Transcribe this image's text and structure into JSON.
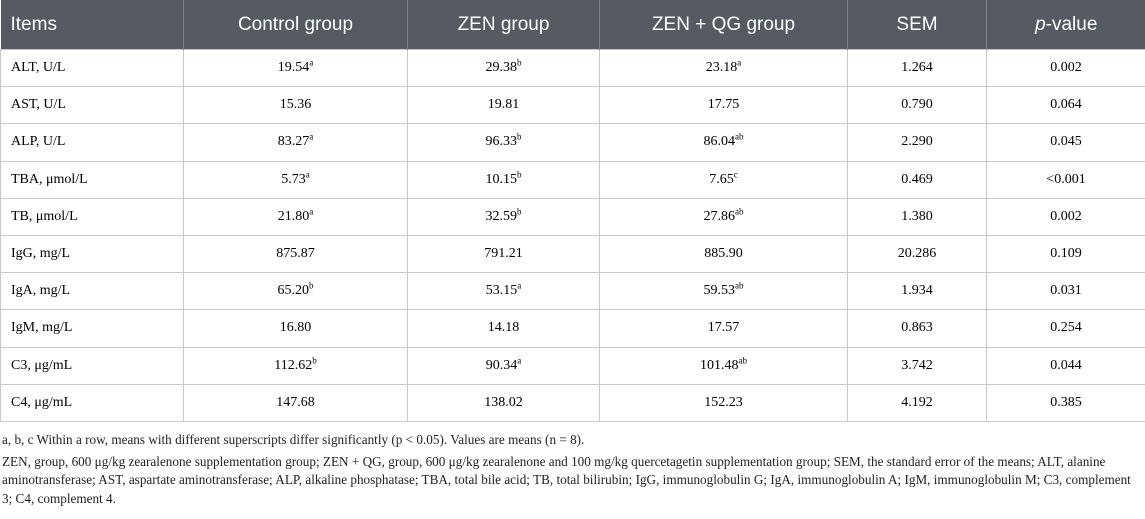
{
  "table": {
    "headers": [
      "Items",
      "Control group",
      "ZEN group",
      "ZEN + QG group",
      "SEM",
      "p-value"
    ],
    "rows": [
      {
        "item": "ALT, U/L",
        "control": "19.54",
        "control_sup": "a",
        "zen": "29.38",
        "zen_sup": "b",
        "zenqg": "23.18",
        "zenqg_sup": "a",
        "sem": "1.264",
        "p": "0.002"
      },
      {
        "item": "AST, U/L",
        "control": "15.36",
        "control_sup": "",
        "zen": "19.81",
        "zen_sup": "",
        "zenqg": "17.75",
        "zenqg_sup": "",
        "sem": "0.790",
        "p": "0.064"
      },
      {
        "item": "ALP, U/L",
        "control": "83.27",
        "control_sup": "a",
        "zen": "96.33",
        "zen_sup": "b",
        "zenqg": "86.04",
        "zenqg_sup": "ab",
        "sem": "2.290",
        "p": "0.045"
      },
      {
        "item": "TBA, μmol/L",
        "control": "5.73",
        "control_sup": "a",
        "zen": "10.15",
        "zen_sup": "b",
        "zenqg": "7.65",
        "zenqg_sup": "c",
        "sem": "0.469",
        "p": "<0.001"
      },
      {
        "item": "TB, μmol/L",
        "control": "21.80",
        "control_sup": "a",
        "zen": "32.59",
        "zen_sup": "b",
        "zenqg": "27.86",
        "zenqg_sup": "ab",
        "sem": "1.380",
        "p": "0.002"
      },
      {
        "item": "IgG, mg/L",
        "control": "875.87",
        "control_sup": "",
        "zen": "791.21",
        "zen_sup": "",
        "zenqg": "885.90",
        "zenqg_sup": "",
        "sem": "20.286",
        "p": "0.109"
      },
      {
        "item": "IgA, mg/L",
        "control": "65.20",
        "control_sup": "b",
        "zen": "53.15",
        "zen_sup": "a",
        "zenqg": "59.53",
        "zenqg_sup": "ab",
        "sem": "1.934",
        "p": "0.031"
      },
      {
        "item": "IgM, mg/L",
        "control": "16.80",
        "control_sup": "",
        "zen": "14.18",
        "zen_sup": "",
        "zenqg": "17.57",
        "zenqg_sup": "",
        "sem": "0.863",
        "p": "0.254"
      },
      {
        "item": "C3, μg/mL",
        "control": "112.62",
        "control_sup": "b",
        "zen": "90.34",
        "zen_sup": "a",
        "zenqg": "101.48",
        "zenqg_sup": "ab",
        "sem": "3.742",
        "p": "0.044"
      },
      {
        "item": "C4, μg/mL",
        "control": "147.68",
        "control_sup": "",
        "zen": "138.02",
        "zen_sup": "",
        "zenqg": "152.23",
        "zenqg_sup": "",
        "sem": "4.192",
        "p": "0.385"
      }
    ]
  },
  "footnotes": {
    "line1": "a, b, c Within a row, means with different superscripts differ significantly (p < 0.05). Values are means (n = 8).",
    "line2": "ZEN, group, 600 μg/kg zearalenone supplementation group; ZEN + QG, group, 600 μg/kg zearalenone and 100 mg/kg quercetagetin supplementation group; SEM, the standard error of the means; ALT, alanine aminotransferase; AST, aspartate aminotransferase; ALP, alkaline phosphatase; TBA, total bile acid; TB, total bilirubin; IgG, immunoglobulin G; IgA, immunoglobulin A; IgM, immunoglobulin M; C3, complement 3; C4, complement 4."
  },
  "colors": {
    "header_bg": "#555a63",
    "header_text": "#ffffff",
    "grid": "#c8c8c8"
  }
}
